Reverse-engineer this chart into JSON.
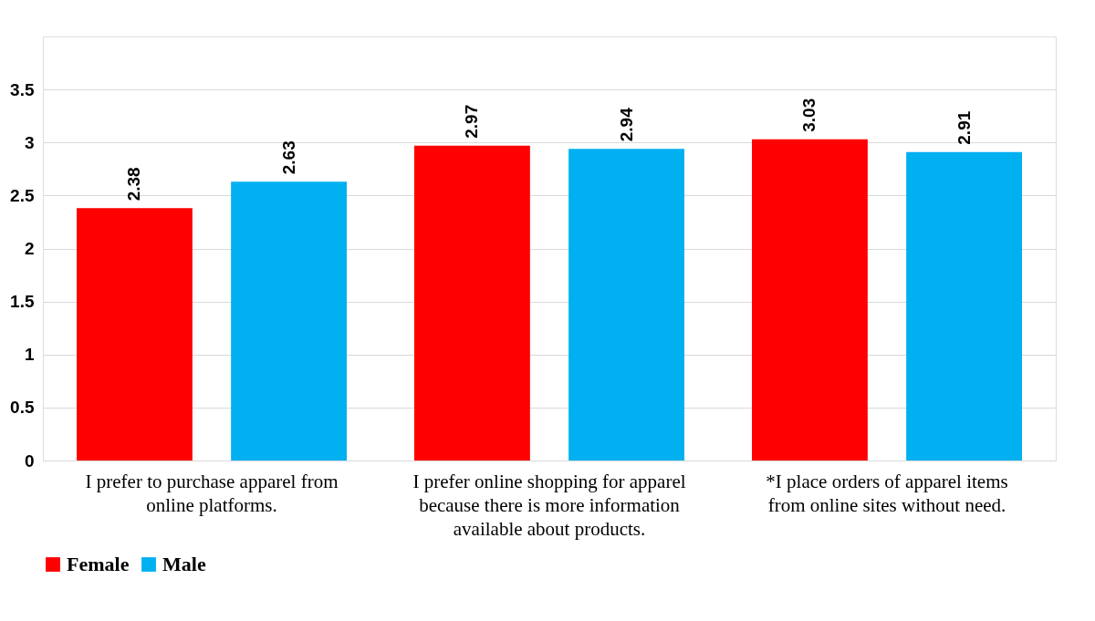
{
  "chart_data": {
    "type": "bar",
    "categories": [
      "I prefer to purchase apparel from online platforms.",
      "I prefer online shopping for apparel because there is more information available about products.",
      "*I place orders of apparel items from online sites without need."
    ],
    "series": [
      {
        "name": "Female",
        "color": "#ff0000",
        "values": [
          2.38,
          2.97,
          3.03
        ]
      },
      {
        "name": "Male",
        "color": "#00b0f0",
        "values": [
          2.63,
          2.94,
          2.91
        ]
      }
    ],
    "ylim": [
      0,
      4
    ],
    "yticks": [
      0,
      0.5,
      1,
      1.5,
      2,
      2.5,
      3,
      3.5
    ],
    "grid": "y",
    "legend": "bottom",
    "data_labels": true
  }
}
